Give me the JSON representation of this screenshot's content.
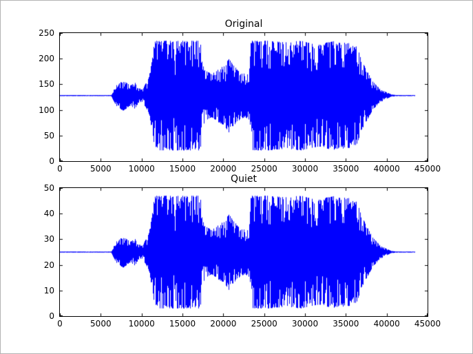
{
  "figure": {
    "background": "#ffffff",
    "border_color": "#b3b3b3",
    "axis_color": "#000000"
  },
  "chart_data": [
    {
      "type": "line",
      "title": "Original",
      "xlabel": "",
      "ylabel": "",
      "line_color": "#0000ff",
      "grid": false,
      "legend": null,
      "xlim": [
        0,
        45000
      ],
      "ylim": [
        0,
        250
      ],
      "x_ticks": [
        0,
        5000,
        10000,
        15000,
        20000,
        25000,
        30000,
        35000,
        40000,
        45000
      ],
      "y_ticks": [
        0,
        50,
        100,
        150,
        200,
        250
      ],
      "baseline": 128,
      "envelope": [
        [
          0,
          1
        ],
        [
          6300,
          1
        ],
        [
          6500,
          8
        ],
        [
          6900,
          20
        ],
        [
          7300,
          24
        ],
        [
          7700,
          30
        ],
        [
          8100,
          26
        ],
        [
          8600,
          20
        ],
        [
          9200,
          26
        ],
        [
          9600,
          15
        ],
        [
          10100,
          12
        ],
        [
          10900,
          35
        ],
        [
          11300,
          70
        ],
        [
          11600,
          107
        ],
        [
          13900,
          107
        ],
        [
          14050,
          65
        ],
        [
          14250,
          107
        ],
        [
          17200,
          107
        ],
        [
          17450,
          60
        ],
        [
          17900,
          48
        ],
        [
          18600,
          42
        ],
        [
          19400,
          52
        ],
        [
          20100,
          58
        ],
        [
          20700,
          72
        ],
        [
          21300,
          58
        ],
        [
          22100,
          46
        ],
        [
          22700,
          42
        ],
        [
          23200,
          48
        ],
        [
          23400,
          107
        ],
        [
          25500,
          107
        ],
        [
          27500,
          104
        ],
        [
          29500,
          107
        ],
        [
          31500,
          100
        ],
        [
          33500,
          106
        ],
        [
          35500,
          102
        ],
        [
          36400,
          95
        ],
        [
          36900,
          70
        ],
        [
          37600,
          48
        ],
        [
          38300,
          28
        ],
        [
          39100,
          14
        ],
        [
          39900,
          7
        ],
        [
          40600,
          2
        ],
        [
          41200,
          1
        ],
        [
          43500,
          1
        ]
      ]
    },
    {
      "type": "line",
      "title": "Quiet",
      "xlabel": "",
      "ylabel": "",
      "line_color": "#0000ff",
      "grid": false,
      "legend": null,
      "xlim": [
        0,
        45000
      ],
      "ylim": [
        0,
        50
      ],
      "x_ticks": [
        0,
        5000,
        10000,
        15000,
        20000,
        25000,
        30000,
        35000,
        40000,
        45000
      ],
      "y_ticks": [
        0,
        10,
        20,
        30,
        40,
        50
      ],
      "baseline": 25,
      "envelope": [
        [
          0,
          0.2
        ],
        [
          6300,
          0.2
        ],
        [
          6500,
          1.6
        ],
        [
          6900,
          4.1
        ],
        [
          7300,
          4.9
        ],
        [
          7700,
          6.2
        ],
        [
          8100,
          5.3
        ],
        [
          8600,
          4.1
        ],
        [
          9200,
          5.3
        ],
        [
          9600,
          3.1
        ],
        [
          10100,
          2.5
        ],
        [
          10900,
          7.2
        ],
        [
          11300,
          14.4
        ],
        [
          11600,
          22
        ],
        [
          13900,
          22
        ],
        [
          14050,
          13.4
        ],
        [
          14250,
          22
        ],
        [
          17200,
          22
        ],
        [
          17450,
          12.3
        ],
        [
          17900,
          9.9
        ],
        [
          18600,
          8.6
        ],
        [
          19400,
          10.7
        ],
        [
          20100,
          11.9
        ],
        [
          20700,
          14.8
        ],
        [
          21300,
          11.9
        ],
        [
          22100,
          9.5
        ],
        [
          22700,
          8.6
        ],
        [
          23200,
          9.9
        ],
        [
          23400,
          22
        ],
        [
          25500,
          22
        ],
        [
          27500,
          21.4
        ],
        [
          29500,
          22
        ],
        [
          31500,
          20.6
        ],
        [
          33500,
          21.8
        ],
        [
          35500,
          21
        ],
        [
          36400,
          19.5
        ],
        [
          36900,
          14.4
        ],
        [
          37600,
          9.9
        ],
        [
          38300,
          5.8
        ],
        [
          39100,
          2.9
        ],
        [
          39900,
          1.4
        ],
        [
          40600,
          0.4
        ],
        [
          41200,
          0.2
        ],
        [
          43500,
          0.2
        ]
      ]
    }
  ]
}
